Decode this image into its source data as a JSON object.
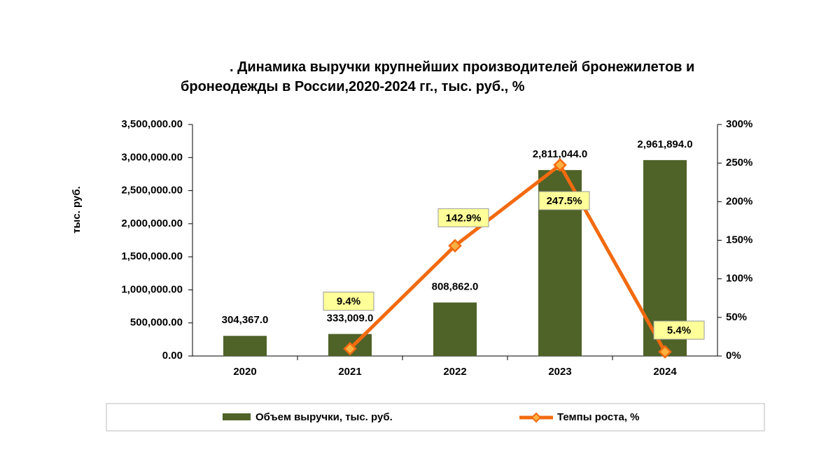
{
  "chart_data": {
    "type": "bar_line",
    "title": ". Динамика выручки крупнейших производителей бронежилетов и бронеодежды в России,2020-2024 гг., тыс. руб., %",
    "y_label": "тыс. руб.",
    "categories": [
      "2020",
      "2021",
      "2022",
      "2023",
      "2024"
    ],
    "series": [
      {
        "name": "Объем выручки, тыс. руб.",
        "type": "bar",
        "color": "#4f6228",
        "values": [
          304367,
          333009,
          808862,
          2811044,
          2961894
        ],
        "value_labels": [
          "304,367.0",
          "333,009.0",
          "808,862.0",
          "2,811,044.0",
          "2,961,894.0"
        ]
      },
      {
        "name": "Темпы роста, %",
        "type": "line",
        "color": "#f26a0f",
        "axis": "y2",
        "values": [
          null,
          9.4,
          142.9,
          247.5,
          5.4
        ],
        "value_labels": [
          null,
          "9.4%",
          "142.9%",
          "247.5%",
          "5.4%"
        ]
      }
    ],
    "ylim": [
      0,
      3500000
    ],
    "yticks": [
      {
        "value": 0,
        "label": "0.00"
      },
      {
        "value": 500000,
        "label": "500,000.00"
      },
      {
        "value": 1000000,
        "label": "1,000,000.00"
      },
      {
        "value": 1500000,
        "label": "1,500,000.00"
      },
      {
        "value": 2000000,
        "label": "2,000,000.00"
      },
      {
        "value": 2500000,
        "label": "2,500,000.00"
      },
      {
        "value": 3000000,
        "label": "3,000,000.00"
      },
      {
        "value": 3500000,
        "label": "3,500,000.00"
      }
    ],
    "y2lim": [
      0,
      300
    ],
    "y2ticks": [
      {
        "value": 0,
        "label": "0%"
      },
      {
        "value": 50,
        "label": "50%"
      },
      {
        "value": 100,
        "label": "100%"
      },
      {
        "value": 150,
        "label": "150%"
      },
      {
        "value": 200,
        "label": "200%"
      },
      {
        "value": 250,
        "label": "250%"
      },
      {
        "value": 300,
        "label": "300%"
      }
    ],
    "legend": "bottom",
    "grid": false
  }
}
